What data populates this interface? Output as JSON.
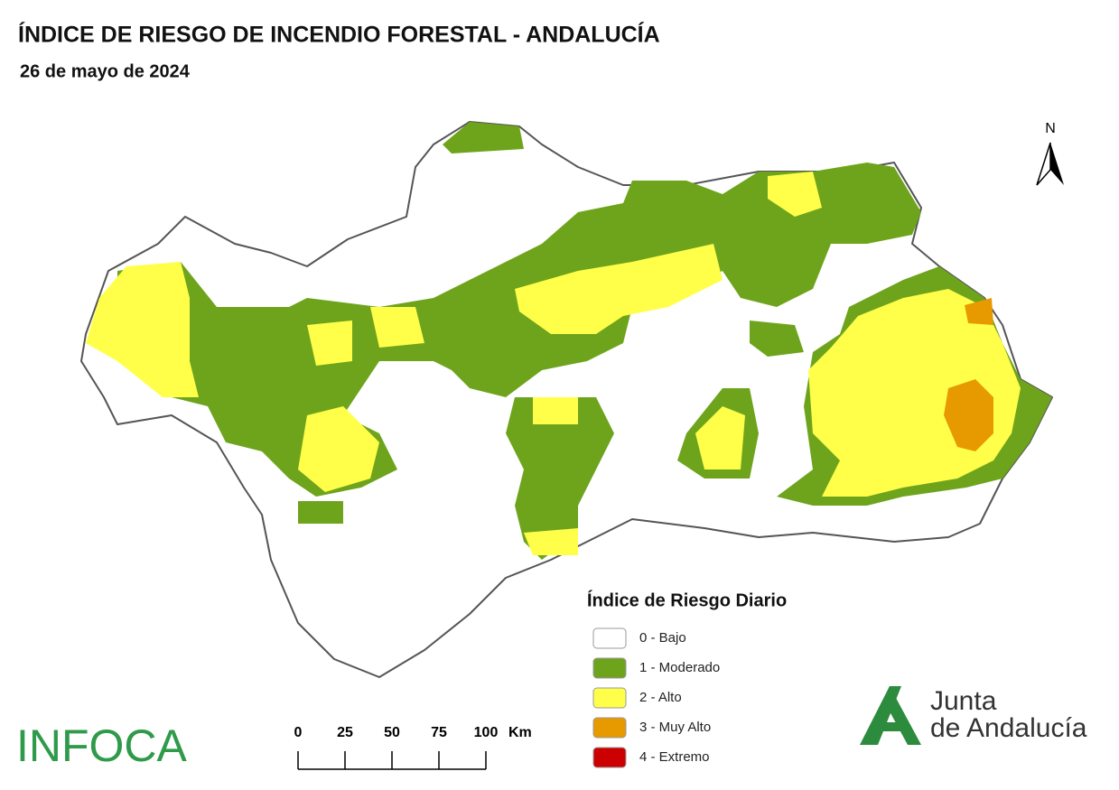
{
  "header": {
    "title": "ÍNDICE DE RIESGO DE INCENDIO FORESTAL - ANDALUCÍA",
    "date": "26 de mayo de 2024"
  },
  "north_label": "N",
  "legend": {
    "title": "Índice de Riesgo Diario",
    "items": [
      {
        "label": "0 - Bajo",
        "color": "#ffffff"
      },
      {
        "label": "1 - Moderado",
        "color": "#6ea41c"
      },
      {
        "label": "2 - Alto",
        "color": "#ffff4a"
      },
      {
        "label": "3 - Muy Alto",
        "color": "#e69a00"
      },
      {
        "label": "4 - Extremo",
        "color": "#cc0000"
      }
    ]
  },
  "scale_bar": {
    "ticks": [
      0,
      25,
      50,
      75,
      100
    ],
    "unit": "Km"
  },
  "footer": {
    "agency": "INFOCA",
    "logo_line1": "Junta",
    "logo_line2": "de Andalucía"
  }
}
